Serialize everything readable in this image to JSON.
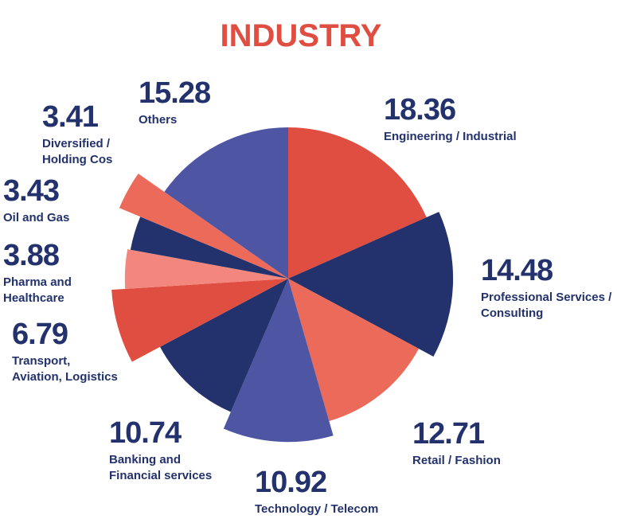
{
  "chart_data": {
    "type": "pie",
    "title": "INDUSTRY",
    "slices": [
      {
        "label": "Engineering / Industrial",
        "label_lines": [
          "Engineering / Industrial"
        ],
        "value": 18.36,
        "value_text": "18.36",
        "color": "#e04e41",
        "radius_scale": 1.0
      },
      {
        "label": "Professional Services / Consulting",
        "label_lines": [
          "Professional Services /",
          "Consulting"
        ],
        "value": 14.48,
        "value_text": "14.48",
        "color": "#23316c",
        "radius_scale": 1.09
      },
      {
        "label": "Retail / Fashion",
        "label_lines": [
          "Retail / Fashion"
        ],
        "value": 12.71,
        "value_text": "12.71",
        "color": "#ec6a5a",
        "radius_scale": 0.98
      },
      {
        "label": "Technology / Telecom",
        "label_lines": [
          "Technology / Telecom"
        ],
        "value": 10.92,
        "value_text": "10.92",
        "color": "#4e56a4",
        "radius_scale": 1.08
      },
      {
        "label": "Banking and Financial services",
        "label_lines": [
          "Banking and",
          "Financial services"
        ],
        "value": 10.74,
        "value_text": "10.74",
        "color": "#23316c",
        "radius_scale": 0.96
      },
      {
        "label": "Transport, Aviation, Logistics",
        "label_lines": [
          "Transport,",
          "Aviation, Logistics"
        ],
        "value": 6.79,
        "value_text": "6.79",
        "color": "#e04e41",
        "radius_scale": 1.17
      },
      {
        "label": "Pharma and Healthcare",
        "label_lines": [
          "Pharma and",
          "Healthcare"
        ],
        "value": 3.88,
        "value_text": "3.88",
        "color": "#f3877d",
        "radius_scale": 1.08
      },
      {
        "label": "Oil and Gas",
        "label_lines": [
          "Oil and Gas"
        ],
        "value": 3.43,
        "value_text": "3.43",
        "color": "#23316c",
        "radius_scale": 1.06
      },
      {
        "label": "Diversified / Holding Cos",
        "label_lines": [
          "Diversified /",
          "Holding Cos"
        ],
        "value": 3.41,
        "value_text": "3.41",
        "color": "#ec6a5a",
        "radius_scale": 1.21
      },
      {
        "label": "Others",
        "label_lines": [
          "Others"
        ],
        "value": 15.28,
        "value_text": "15.28",
        "color": "#4e56a4",
        "radius_scale": 1.0
      }
    ]
  },
  "colors": {
    "title": "#e04e41",
    "text": "#23316c"
  }
}
